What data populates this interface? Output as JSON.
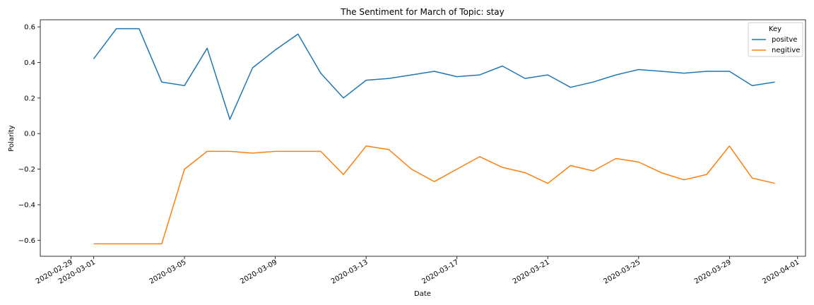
{
  "chart_data": {
    "type": "line",
    "title": "The Sentiment for March of Topic: stay",
    "xlabel": "Date",
    "ylabel": "Polarity",
    "x": [
      "2020-03-01",
      "2020-03-02",
      "2020-03-03",
      "2020-03-04",
      "2020-03-05",
      "2020-03-06",
      "2020-03-07",
      "2020-03-08",
      "2020-03-09",
      "2020-03-10",
      "2020-03-11",
      "2020-03-12",
      "2020-03-13",
      "2020-03-14",
      "2020-03-15",
      "2020-03-16",
      "2020-03-17",
      "2020-03-18",
      "2020-03-19",
      "2020-03-20",
      "2020-03-21",
      "2020-03-22",
      "2020-03-23",
      "2020-03-24",
      "2020-03-25",
      "2020-03-26",
      "2020-03-27",
      "2020-03-28",
      "2020-03-29",
      "2020-03-30",
      "2020-03-31"
    ],
    "series": [
      {
        "name": "positve",
        "color": "#1f77b4",
        "values": [
          0.42,
          0.59,
          0.59,
          0.29,
          0.27,
          0.48,
          0.08,
          0.37,
          0.47,
          0.56,
          0.34,
          0.2,
          0.3,
          0.31,
          0.33,
          0.35,
          0.32,
          0.33,
          0.38,
          0.31,
          0.33,
          0.26,
          0.29,
          0.33,
          0.36,
          0.35,
          0.34,
          0.35,
          0.35,
          0.27,
          0.29
        ]
      },
      {
        "name": "negitive",
        "color": "#ff7f0e",
        "values": [
          -0.62,
          -0.62,
          -0.62,
          -0.62,
          -0.2,
          -0.1,
          -0.1,
          -0.11,
          -0.1,
          -0.1,
          -0.1,
          -0.23,
          -0.07,
          -0.09,
          -0.2,
          -0.27,
          -0.2,
          -0.13,
          -0.19,
          -0.22,
          -0.28,
          -0.18,
          -0.21,
          -0.14,
          -0.16,
          -0.22,
          -0.26,
          -0.23,
          -0.07,
          -0.25,
          -0.28
        ]
      }
    ],
    "xlim": [
      "2020-02-28",
      "2020-04-01"
    ],
    "ylim": [
      -0.69,
      0.64
    ],
    "yticks": [
      0.6,
      0.4,
      0.2,
      0.0,
      -0.2,
      -0.4,
      -0.6
    ],
    "ytick_labels": [
      "0.6",
      "0.4",
      "0.2",
      "0.0",
      "−0.2",
      "−0.4",
      "−0.6"
    ],
    "xticks": [
      "2020-02-29",
      "2020-03-01",
      "2020-03-05",
      "2020-03-09",
      "2020-03-13",
      "2020-03-17",
      "2020-03-21",
      "2020-03-25",
      "2020-03-29",
      "2020-04-01"
    ],
    "grid": false,
    "legend": {
      "title": "Key",
      "placement": "top-right"
    }
  }
}
